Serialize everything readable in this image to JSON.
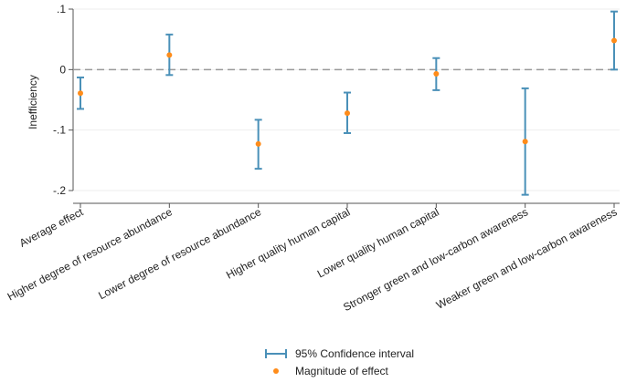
{
  "chart_data": {
    "type": "scatter",
    "title": "",
    "xlabel": "",
    "ylabel": "Inefficiency",
    "ylim": [
      -0.2,
      0.1
    ],
    "y_ticks": [
      {
        "value": 0.1,
        "label": ".1"
      },
      {
        "value": 0,
        "label": "0"
      },
      {
        "value": -0.1,
        "label": "-.1"
      },
      {
        "value": -0.2,
        "label": "-.2"
      }
    ],
    "reference_line": {
      "value": 0,
      "style": "dashed"
    },
    "categories": [
      "Average effect",
      "Higher degree of resource abundance",
      "Lower degree of resource abundance",
      "Higher quality human capital",
      "Lower quality human capital",
      "Stronger green and low-carbon awareness",
      "Weaker green and low-carbon awareness"
    ],
    "series": [
      {
        "name": "Magnitude of effect",
        "values": [
          -0.039,
          0.024,
          -0.123,
          -0.072,
          -0.007,
          -0.119,
          0.048
        ]
      },
      {
        "name": "95% Confidence interval",
        "lower": [
          -0.065,
          -0.009,
          -0.164,
          -0.105,
          -0.034,
          -0.207,
          0.0
        ],
        "upper": [
          -0.013,
          0.058,
          -0.083,
          -0.038,
          0.019,
          -0.031,
          0.096
        ]
      }
    ],
    "legend": {
      "placement": "bottom-center",
      "ci_label": "95% Confidence interval",
      "point_label": "Magnitude of effect"
    },
    "colors": {
      "ci": "#4a90b8",
      "point": "#ff8c1a",
      "ref_line": "#999999",
      "axis": "#555555"
    }
  }
}
